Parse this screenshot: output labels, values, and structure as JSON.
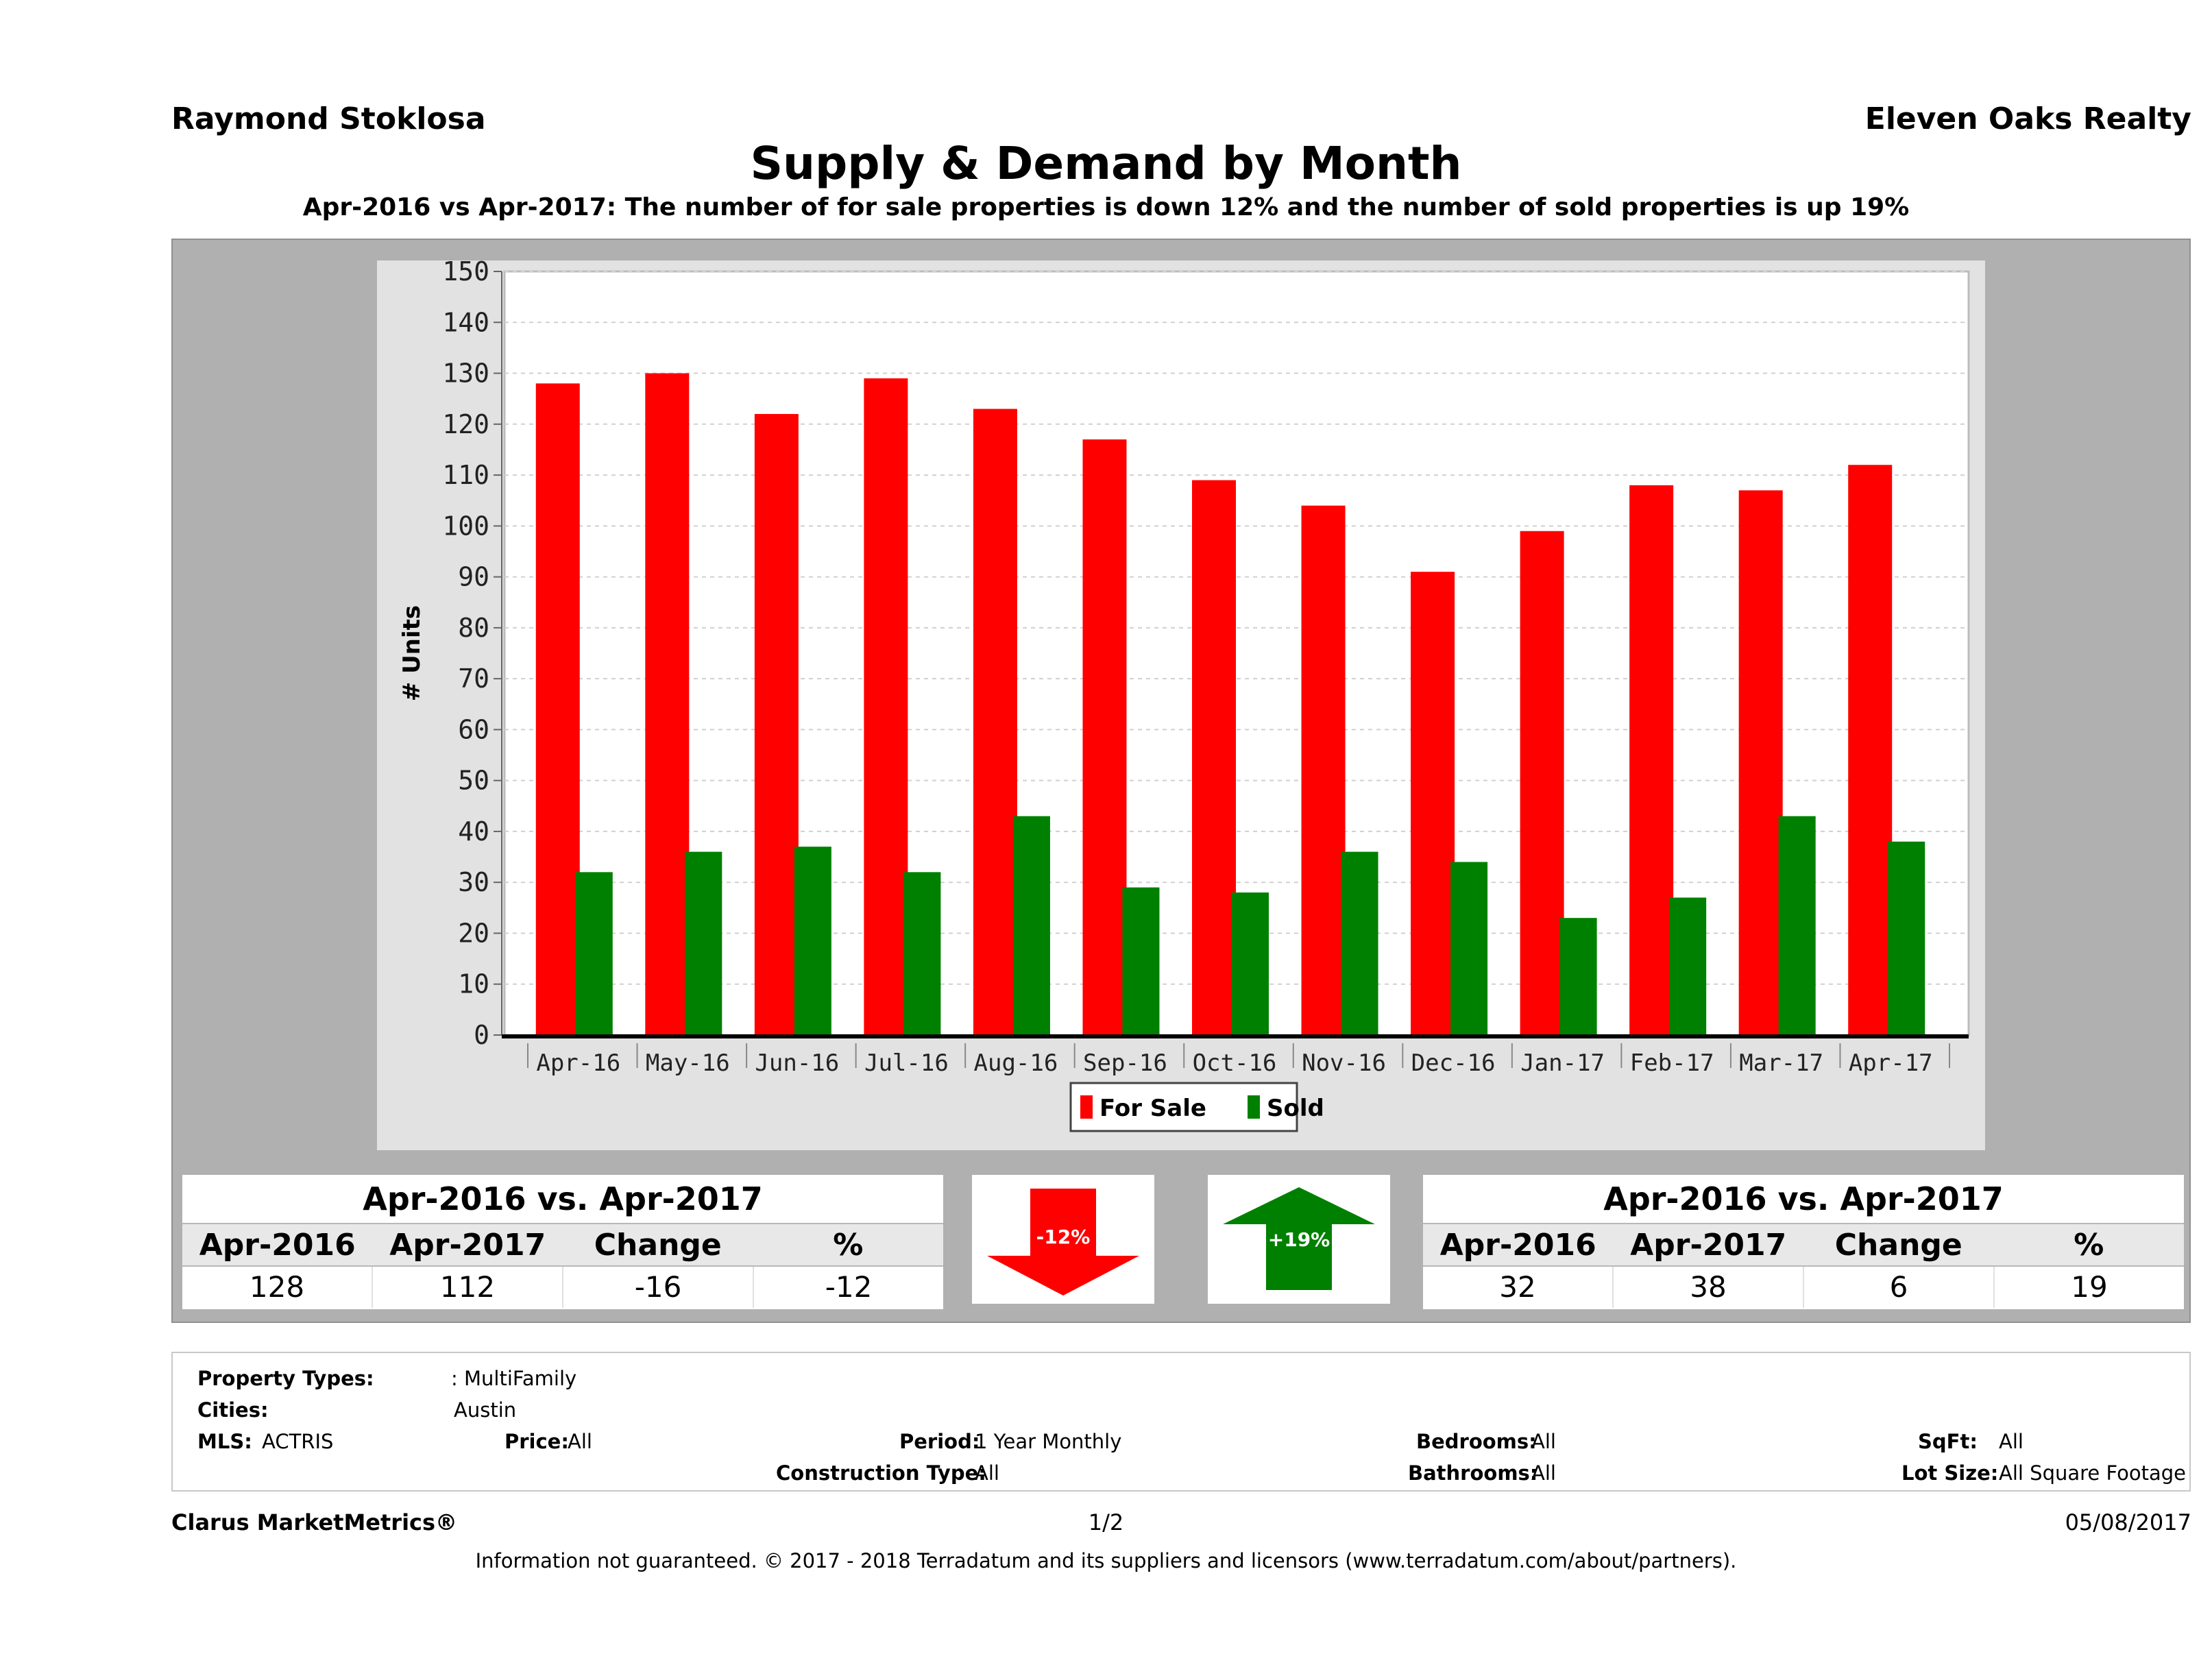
{
  "header": {
    "agent": "Raymond Stoklosa",
    "company": "Eleven Oaks Realty",
    "title": "Supply & Demand by Month",
    "subtitle": "Apr-2016 vs Apr-2017: The number of for sale properties is down 12% and the number of sold properties is up 19%"
  },
  "chart_data": {
    "type": "bar",
    "categories": [
      "Apr-16",
      "May-16",
      "Jun-16",
      "Jul-16",
      "Aug-16",
      "Sep-16",
      "Oct-16",
      "Nov-16",
      "Dec-16",
      "Jan-17",
      "Feb-17",
      "Mar-17",
      "Apr-17"
    ],
    "series": [
      {
        "name": "For Sale",
        "color": "#ff0000",
        "values": [
          128,
          130,
          122,
          129,
          123,
          117,
          109,
          104,
          91,
          99,
          108,
          107,
          112
        ]
      },
      {
        "name": "Sold",
        "color": "#008000",
        "values": [
          32,
          36,
          37,
          32,
          43,
          29,
          28,
          36,
          34,
          23,
          27,
          43,
          38
        ]
      }
    ],
    "ylabel": "# Units",
    "xlabel": "",
    "ylim": [
      0,
      150
    ],
    "yticks": [
      0,
      10,
      20,
      30,
      40,
      50,
      60,
      70,
      80,
      90,
      100,
      110,
      120,
      130,
      140,
      150
    ],
    "grid": true,
    "legend": "bottom-center"
  },
  "stats": {
    "for_sale": {
      "heading": "Apr-2016 vs. Apr-2017",
      "columns": [
        "Apr-2016",
        "Apr-2017",
        "Change",
        "%"
      ],
      "values": [
        "128",
        "112",
        "-16",
        "-12"
      ],
      "badge": "-12%",
      "direction": "down",
      "color": "#ff0000"
    },
    "sold": {
      "heading": "Apr-2016 vs. Apr-2017",
      "columns": [
        "Apr-2016",
        "Apr-2017",
        "Change",
        "%"
      ],
      "values": [
        "32",
        "38",
        "6",
        "19"
      ],
      "badge": "+19%",
      "direction": "up",
      "color": "#008000"
    }
  },
  "criteria": {
    "property_types_label": "Property Types:",
    "property_types_value": ": MultiFamily",
    "cities_label": "Cities:",
    "cities_value": "Austin",
    "mls_label": "MLS:",
    "mls_value": "ACTRIS",
    "price_label": "Price:",
    "price_value": "All",
    "period_label": "Period:",
    "period_value": "1 Year Monthly",
    "construction_label": "Construction Type:",
    "construction_value": "All",
    "bedrooms_label": "Bedrooms:",
    "bedrooms_value": "All",
    "bathrooms_label": "Bathrooms:",
    "bathrooms_value": "All",
    "sqft_label": "SqFt:",
    "sqft_value": "All",
    "lot_label": "Lot Size:",
    "lot_value": "All Square Footage"
  },
  "footer": {
    "brand": "Clarus MarketMetrics®",
    "page": "1/2",
    "date": "05/08/2017",
    "disclaimer": "Information not guaranteed. © 2017 - 2018 Terradatum and its suppliers and licensors (www.terradatum.com/about/partners)."
  }
}
